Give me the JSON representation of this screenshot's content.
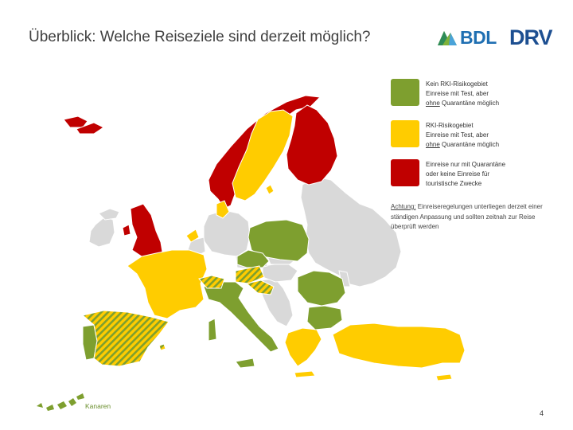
{
  "title": "Überblick: Welche Reiseziele sind derzeit möglich?",
  "logos": {
    "bdl": "BDL",
    "drv": "DRV"
  },
  "legend": [
    {
      "lines": [
        "Kein RKI-Risikogebiet",
        "Einreise mit Test, aber"
      ],
      "underlined": "ohne",
      "rest": " Quarantäne möglich",
      "color": "#7e9f2f"
    },
    {
      "lines": [
        "RKI-Risikogebiet",
        "Einreise mit Test, aber"
      ],
      "underlined": "ohne",
      "rest": " Quarantäne möglich",
      "color": "#ffcc00"
    },
    {
      "lines": [
        "Einreise nur mit Quarantäne",
        "oder keine Einreise für",
        "touristische Zwecke"
      ],
      "color": "#c00000"
    }
  ],
  "note": {
    "label": "Achtung:",
    "text": " Einreiseregelungen unterliegen derzeit einer ständigen Anpassung und sollten zeitnah zur Reise überprüft werden"
  },
  "canary_label": "Kanaren",
  "page_number": "4",
  "colors": {
    "green": "#7e9f2f",
    "yellow": "#ffcc00",
    "red": "#c00000",
    "grey": "#d9d9d9"
  }
}
